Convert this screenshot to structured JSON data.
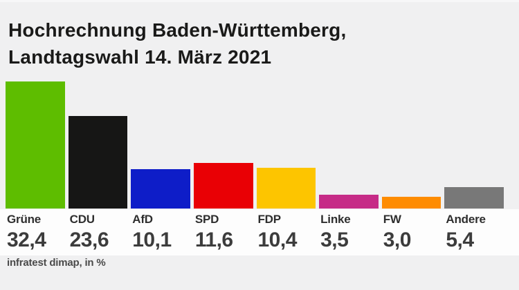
{
  "header": {
    "title_line1": "Hochrechnung Baden-Württemberg,",
    "title_line2": "Landtagswahl 14. März 2021"
  },
  "footer": {
    "source": "infratest dimap, in %"
  },
  "chart_data": {
    "type": "bar",
    "title": "Hochrechnung Baden-Württemberg, Landtagswahl 14. März 2021",
    "categories": [
      "Grüne",
      "CDU",
      "AfD",
      "SPD",
      "FDP",
      "Linke",
      "FW",
      "Andere"
    ],
    "values": [
      32.4,
      23.6,
      10.1,
      11.6,
      10.4,
      3.5,
      3.0,
      5.4
    ],
    "value_labels": [
      "32,4",
      "23,6",
      "10,1",
      "11,6",
      "10,4",
      "3,5",
      "3,0",
      "5,4"
    ],
    "bar_colors": [
      "#5ebd00",
      "#161615",
      "#0e1dc8",
      "#e90005",
      "#fdc500",
      "#c62b87",
      "#fe8c01",
      "#787878"
    ],
    "xlabel": "",
    "ylabel": "",
    "unit": "%",
    "ylim": [
      0,
      34
    ],
    "grid": false,
    "legend": false,
    "background_color": "#f0f0f1",
    "label_band_color": "#fdfdfd",
    "source": "infratest dimap, in %"
  }
}
